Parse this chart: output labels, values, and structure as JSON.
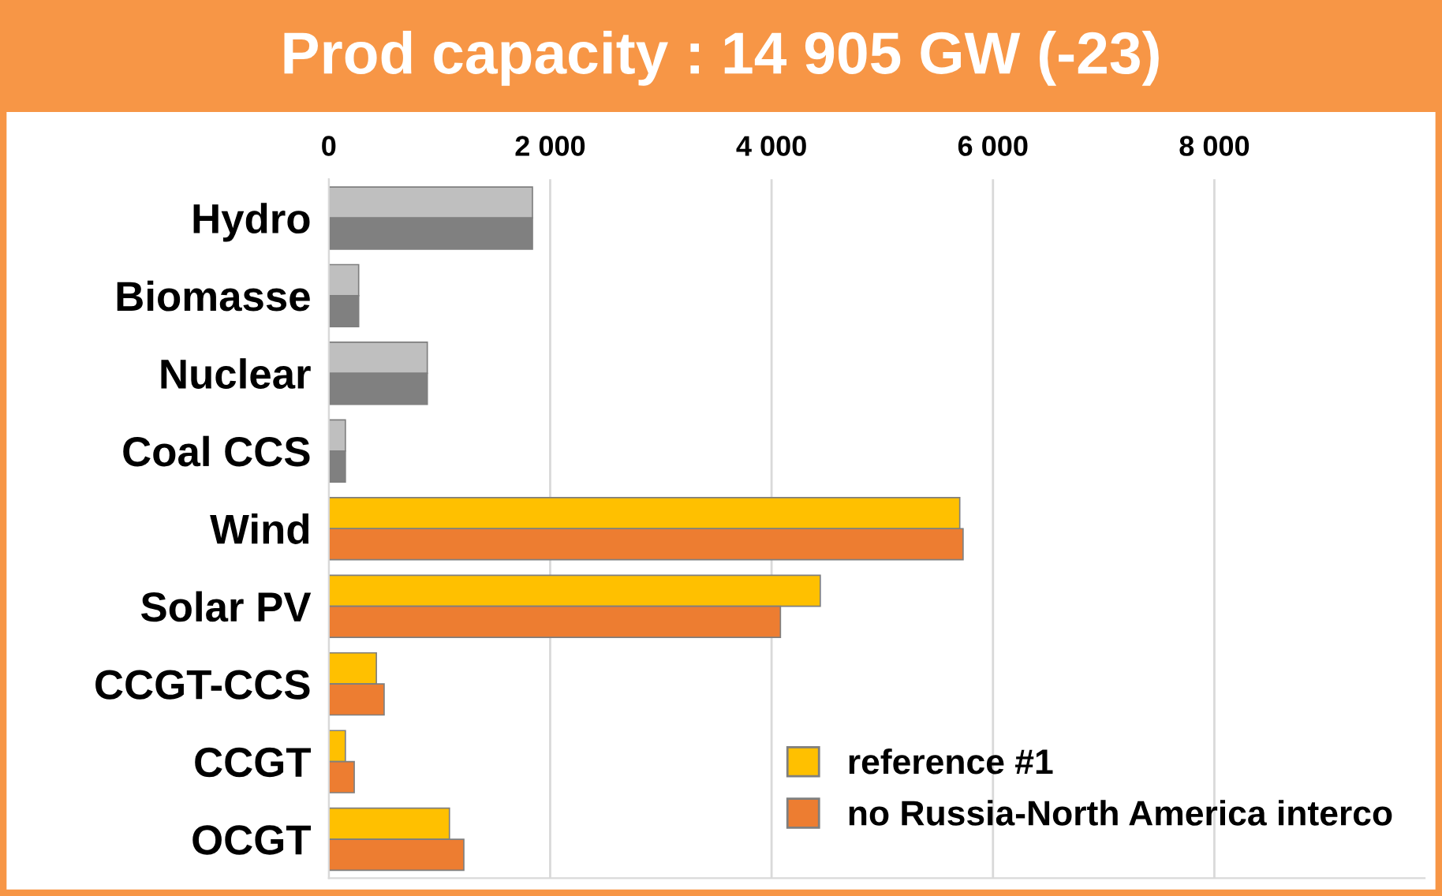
{
  "chart_data": {
    "type": "bar",
    "orientation": "horizontal",
    "title": "Prod capacity : 14 905 GW (-23)",
    "categories": [
      "Hydro",
      "Biomasse",
      "Nuclear",
      "Coal CCS",
      "Wind",
      "Solar PV",
      "CCGT-CCS",
      "CCGT",
      "OCGT"
    ],
    "series": [
      {
        "name": "reference #1",
        "color": "#ffc000",
        "colors": [
          "#bfbfbf",
          "#bfbfbf",
          "#bfbfbf",
          "#bfbfbf",
          "#ffc000",
          "#ffc000",
          "#ffc000",
          "#ffc000",
          "#ffc000"
        ],
        "values": [
          1840,
          270,
          890,
          150,
          5700,
          4440,
          430,
          150,
          1090
        ]
      },
      {
        "name": "no Russia-North America interco",
        "color": "#ed7d31",
        "colors": [
          "#808080",
          "#808080",
          "#808080",
          "#808080",
          "#ed7d31",
          "#ed7d31",
          "#ed7d31",
          "#ed7d31",
          "#ed7d31"
        ],
        "values": [
          1840,
          270,
          890,
          150,
          5730,
          4080,
          500,
          230,
          1220
        ]
      }
    ],
    "xlim": [
      0,
      9900
    ],
    "xticks": [
      0,
      {
        "value": 2000,
        "label": "2 000"
      },
      {
        "value": 4000,
        "label": "4 000"
      },
      {
        "value": 6000,
        "label": "6 000"
      },
      {
        "value": 8000,
        "label": "8 000"
      }
    ],
    "grid": "x",
    "legend": "bottom right"
  }
}
